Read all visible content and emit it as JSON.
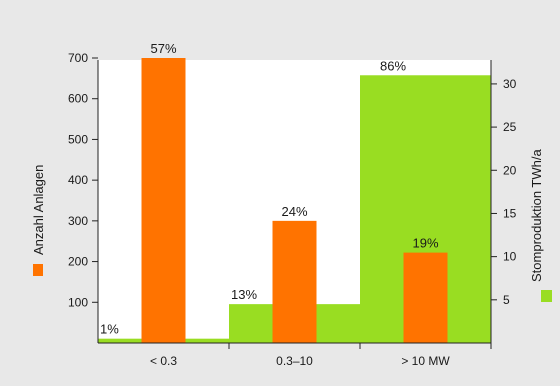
{
  "chart_data": {
    "type": "bar",
    "categories": [
      "< 0.3",
      "0.3–10",
      "> 10 MW"
    ],
    "series": [
      {
        "name": "Anzahl Anlagen",
        "axis": "left",
        "color": "#ff7300",
        "values": [
          700,
          300,
          222
        ],
        "labels": [
          "57%",
          "24%",
          "19%"
        ]
      },
      {
        "name": "Stomproduktion TWh/a",
        "axis": "right",
        "color": "#99dd22",
        "values": [
          0.5,
          4.5,
          31
        ],
        "labels": [
          "1%",
          "13%",
          "86%"
        ]
      }
    ],
    "y_left": {
      "label": "Anzahl Anlagen",
      "ticks": [
        100,
        200,
        300,
        400,
        500,
        600,
        700
      ],
      "ylim": [
        0,
        700
      ]
    },
    "y_right": {
      "label": "Stomproduktion TWh/a",
      "ticks": [
        5,
        10,
        15,
        20,
        25,
        30
      ],
      "ylim": [
        0,
        33
      ]
    },
    "grid": false
  }
}
